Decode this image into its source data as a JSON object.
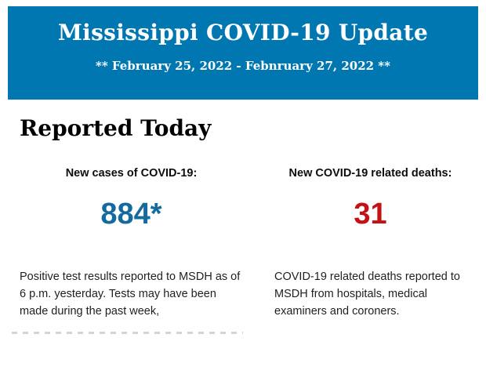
{
  "header": {
    "title": "Mississippi COVID-19 Update",
    "date_range": "** February 25, 2022 - Febnruary 27, 2022 **"
  },
  "main": {
    "heading": "Reported Today",
    "stats": [
      {
        "label": "New cases of COVID-19:",
        "value": "884*",
        "value_color": "#136a9e",
        "description": "Positive test results reported to MSDH as of 6 p.m. yesterday. Tests may have been made during the past week,"
      },
      {
        "label": "New COVID-19 related deaths:",
        "value": "31",
        "value_color": "#c41114",
        "description": "COVID-19 related deaths reported to MSDH from hospitals, medical examiners and coroners."
      }
    ]
  },
  "colors": {
    "banner_blue": "#0077b1",
    "cases_blue": "#136a9e",
    "deaths_red": "#c41114"
  }
}
